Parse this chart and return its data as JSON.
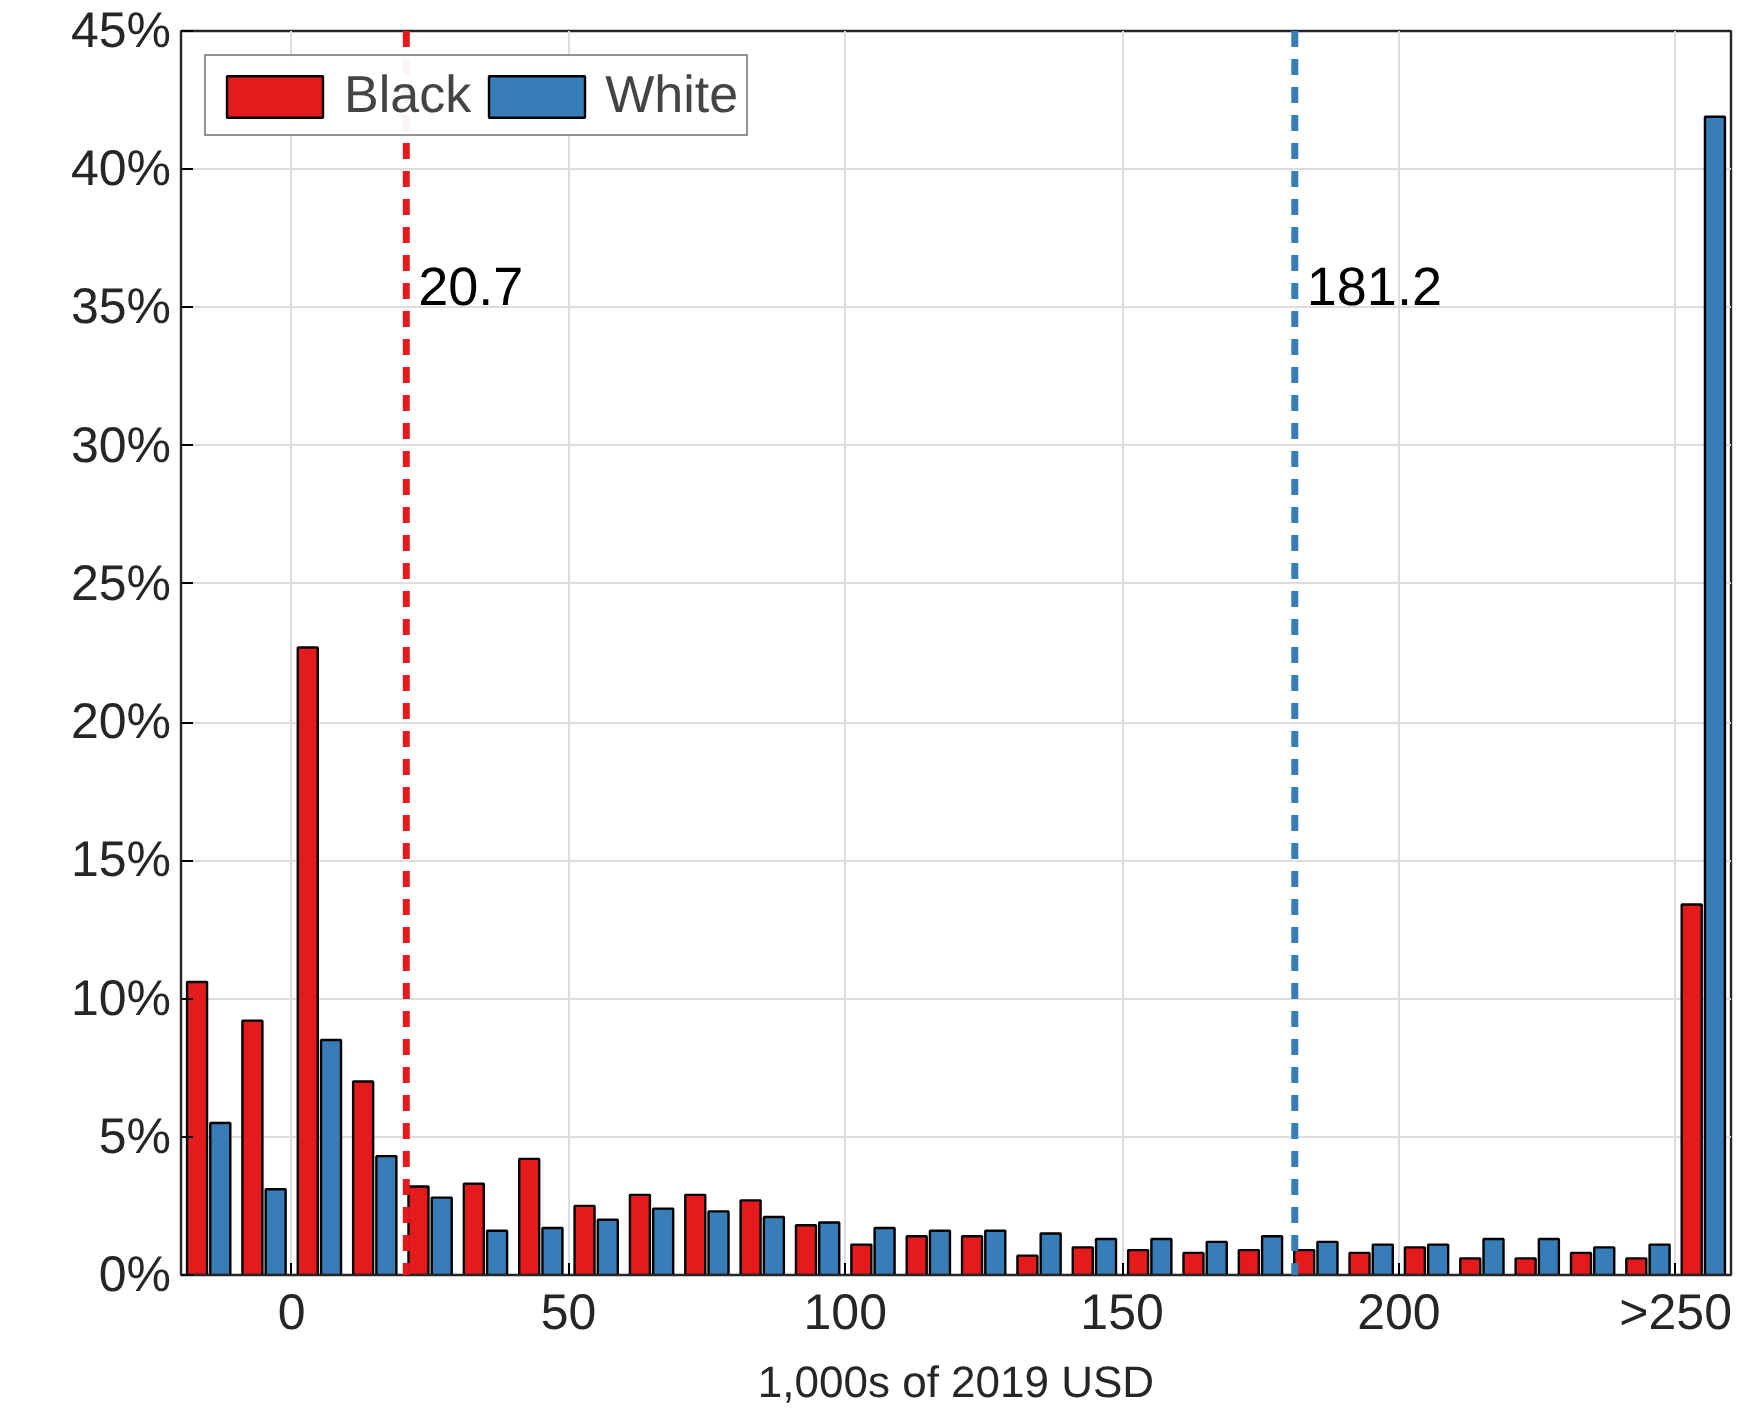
{
  "chart_data": {
    "type": "bar",
    "xlabel": "1,000s of 2019 USD",
    "x": [
      -15,
      -5,
      5,
      15,
      25,
      35,
      45,
      55,
      65,
      75,
      85,
      95,
      105,
      115,
      125,
      135,
      145,
      155,
      165,
      175,
      185,
      195,
      205,
      215,
      225,
      235,
      245,
      255
    ],
    "series": [
      {
        "name": "Black",
        "color": "#e41a1c",
        "values": [
          10.6,
          9.2,
          22.7,
          7.0,
          3.2,
          3.3,
          4.2,
          2.5,
          2.9,
          2.9,
          2.7,
          1.8,
          1.1,
          1.4,
          1.4,
          0.7,
          1.0,
          0.9,
          0.8,
          0.9,
          0.9,
          0.8,
          1.0,
          0.6,
          0.6,
          0.8,
          0.6,
          13.4
        ]
      },
      {
        "name": "White",
        "color": "#377eb8",
        "values": [
          5.5,
          3.1,
          8.5,
          4.3,
          2.8,
          1.6,
          1.7,
          2.0,
          2.4,
          2.3,
          2.1,
          1.9,
          1.7,
          1.6,
          1.6,
          1.5,
          1.3,
          1.3,
          1.2,
          1.4,
          1.2,
          1.1,
          1.1,
          1.3,
          1.3,
          1.0,
          1.1,
          41.9
        ]
      }
    ],
    "xlim": [
      -20,
      260
    ],
    "xticks": [
      0,
      50,
      100,
      150,
      200,
      {
        "value": 250,
        "label": ">250"
      }
    ],
    "ylim": [
      0,
      45
    ],
    "yticks": [
      {
        "value": 0,
        "label": "0%"
      },
      {
        "value": 5,
        "label": "5%"
      },
      {
        "value": 10,
        "label": "10%"
      },
      {
        "value": 15,
        "label": "15%"
      },
      {
        "value": 20,
        "label": "20%"
      },
      {
        "value": 25,
        "label": "25%"
      },
      {
        "value": 30,
        "label": "30%"
      },
      {
        "value": 35,
        "label": "35%"
      },
      {
        "value": 40,
        "label": "40%"
      },
      {
        "value": 45,
        "label": "45%"
      }
    ],
    "grid": true,
    "legend": "top left",
    "ref_lines": [
      {
        "axis": "x",
        "value": 20.7,
        "label": "20.7",
        "color": "#e41a1c",
        "line_style": "dashed"
      },
      {
        "axis": "x",
        "value": 181.2,
        "label": "181.2",
        "color": "#377eb8",
        "line_style": "dashed"
      }
    ]
  }
}
